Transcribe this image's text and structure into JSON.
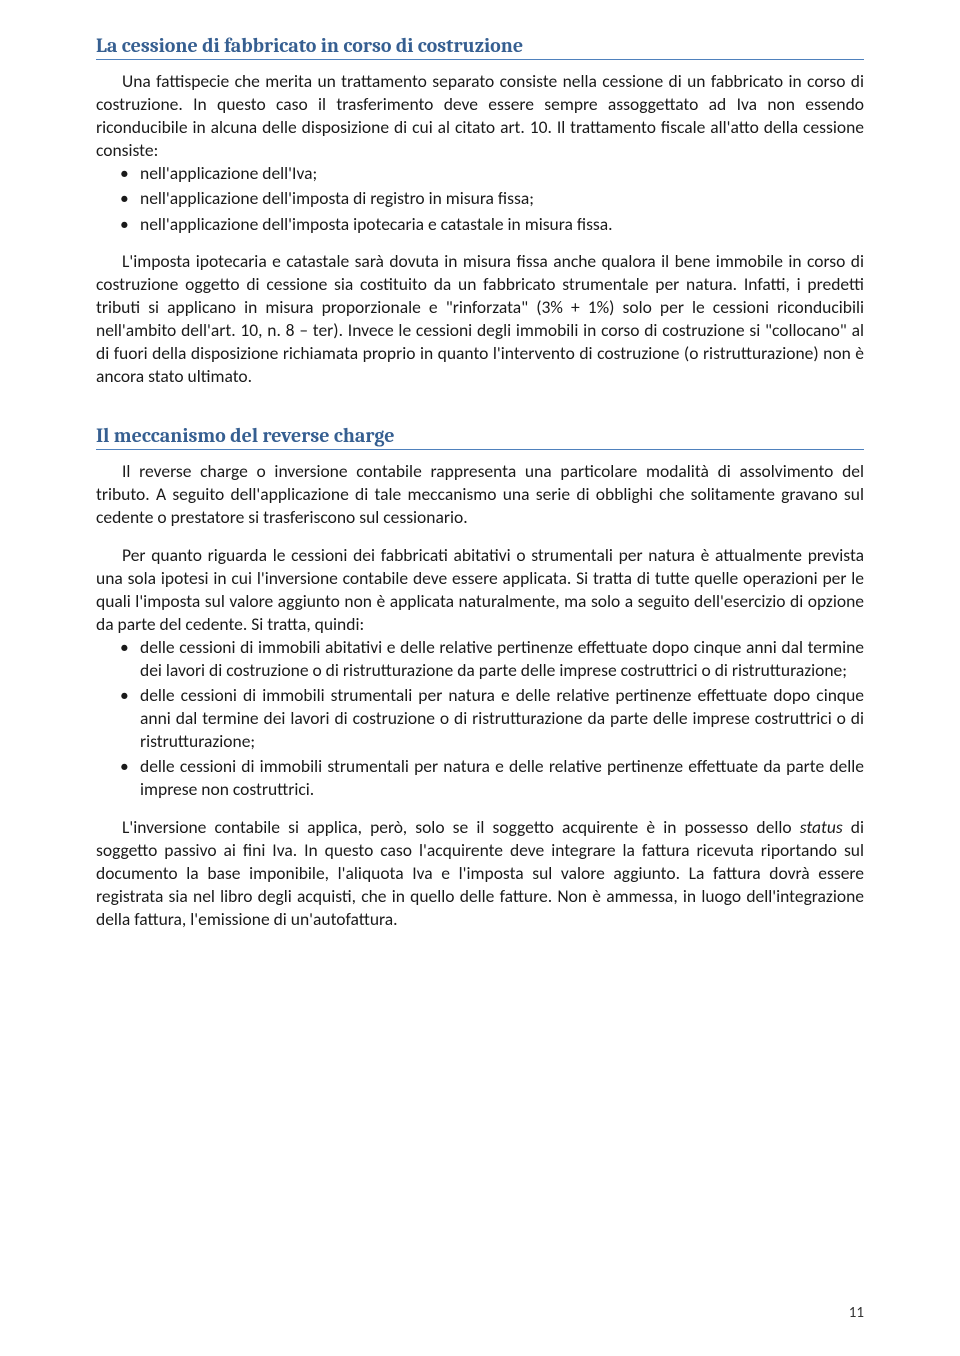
{
  "page_number": "11",
  "sections": [
    {
      "heading": "La cessione di fabbricato in corso di costruzione",
      "para1": "Una fattispecie che merita un trattamento separato consiste nella cessione di un fabbricato in corso di costruzione. In questo caso il trasferimento deve essere sempre assoggettato ad Iva non essendo riconducibile in alcuna delle disposizione di cui al citato art. 10. Il trattamento fiscale all'atto della cessione consiste:",
      "bullets1": [
        "nell'applicazione dell'Iva;",
        "nell'applicazione dell'imposta di registro in misura fissa;",
        "nell'applicazione dell'imposta ipotecaria e catastale in misura fissa."
      ],
      "para2": "L'imposta ipotecaria e catastale sarà dovuta in misura fissa anche qualora il bene immobile in corso di costruzione oggetto di cessione sia costituito da un fabbricato strumentale per natura. Infatti, i predetti tributi si applicano in misura proporzionale e \"rinforzata\" (3% + 1%) solo per le cessioni riconducibili nell'ambito dell'art. 10, n. 8 – ter). Invece le cessioni degli immobili in corso di costruzione si \"collocano\" al di fuori della disposizione richiamata proprio in quanto l'intervento di costruzione (o ristrutturazione) non è ancora stato ultimato."
    },
    {
      "heading": "Il meccanismo del reverse charge",
      "para1": "Il reverse charge o inversione contabile rappresenta una particolare modalità di assolvimento del tributo. A seguito dell'applicazione di tale meccanismo una serie di obblighi che solitamente gravano sul cedente o prestatore si trasferiscono sul cessionario.",
      "para2": "Per quanto riguarda le cessioni dei fabbricati abitativi o strumentali per natura è attualmente prevista una sola ipotesi in cui l'inversione contabile deve essere applicata. Si tratta di tutte quelle operazioni per le quali l'imposta sul valore aggiunto non è applicata naturalmente, ma solo a seguito dell'esercizio di opzione da parte del cedente. Si tratta, quindi:",
      "bullets1": [
        "delle cessioni di immobili abitativi e delle relative pertinenze effettuate dopo cinque anni dal termine dei lavori di costruzione o di ristrutturazione da parte delle imprese costruttrici o di ristrutturazione;",
        "delle cessioni di immobili strumentali per natura e delle relative pertinenze effettuate dopo cinque anni dal termine dei lavori di costruzione o di ristrutturazione da parte delle imprese costruttrici o di ristrutturazione;",
        "delle cessioni di immobili strumentali per natura e delle relative pertinenze effettuate da parte delle imprese non costruttrici."
      ],
      "para3_pre": "L'inversione contabile si applica, però, solo se il soggetto acquirente è in possesso dello ",
      "para3_ital": "status",
      "para3_post": " di soggetto passivo ai fini Iva. In questo caso l'acquirente deve integrare la fattura ricevuta riportando sul documento la base imponibile, l'aliquota Iva e l'imposta sul valore aggiunto. La fattura dovrà essere registrata sia nel libro degli acquisti, che in quello delle fatture. Non è ammessa, in luogo dell'integrazione della fattura, l'emissione di un'autofattura."
    }
  ]
}
